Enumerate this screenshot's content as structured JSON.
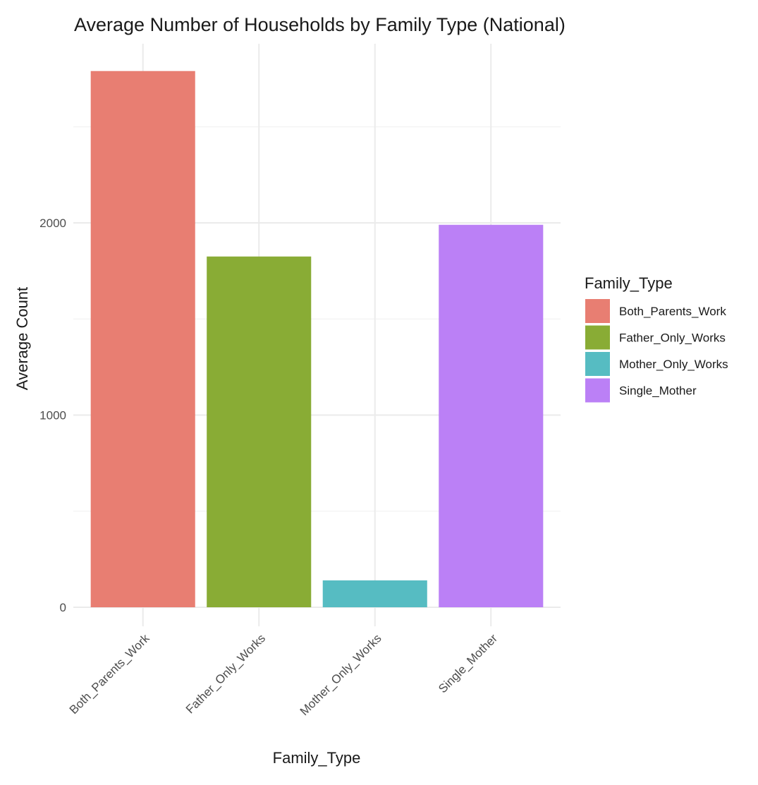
{
  "chart_data": {
    "type": "bar",
    "title": "Average Number of Households by Family Type (National)",
    "xlabel": "Family_Type",
    "ylabel": "Average Count",
    "categories": [
      "Both_Parents_Work",
      "Father_Only_Works",
      "Mother_Only_Works",
      "Single_Mother"
    ],
    "values": [
      2790,
      1825,
      140,
      1990
    ],
    "colors": [
      "#E87E72",
      "#89AC35",
      "#56BCC2",
      "#BB80F6"
    ],
    "ylim": [
      0,
      2930
    ],
    "yticks": [
      0,
      1000,
      2000
    ],
    "grid": true,
    "legend": {
      "title": "Family_Type",
      "position": "right",
      "entries": [
        "Both_Parents_Work",
        "Father_Only_Works",
        "Mother_Only_Works",
        "Single_Mother"
      ]
    }
  }
}
